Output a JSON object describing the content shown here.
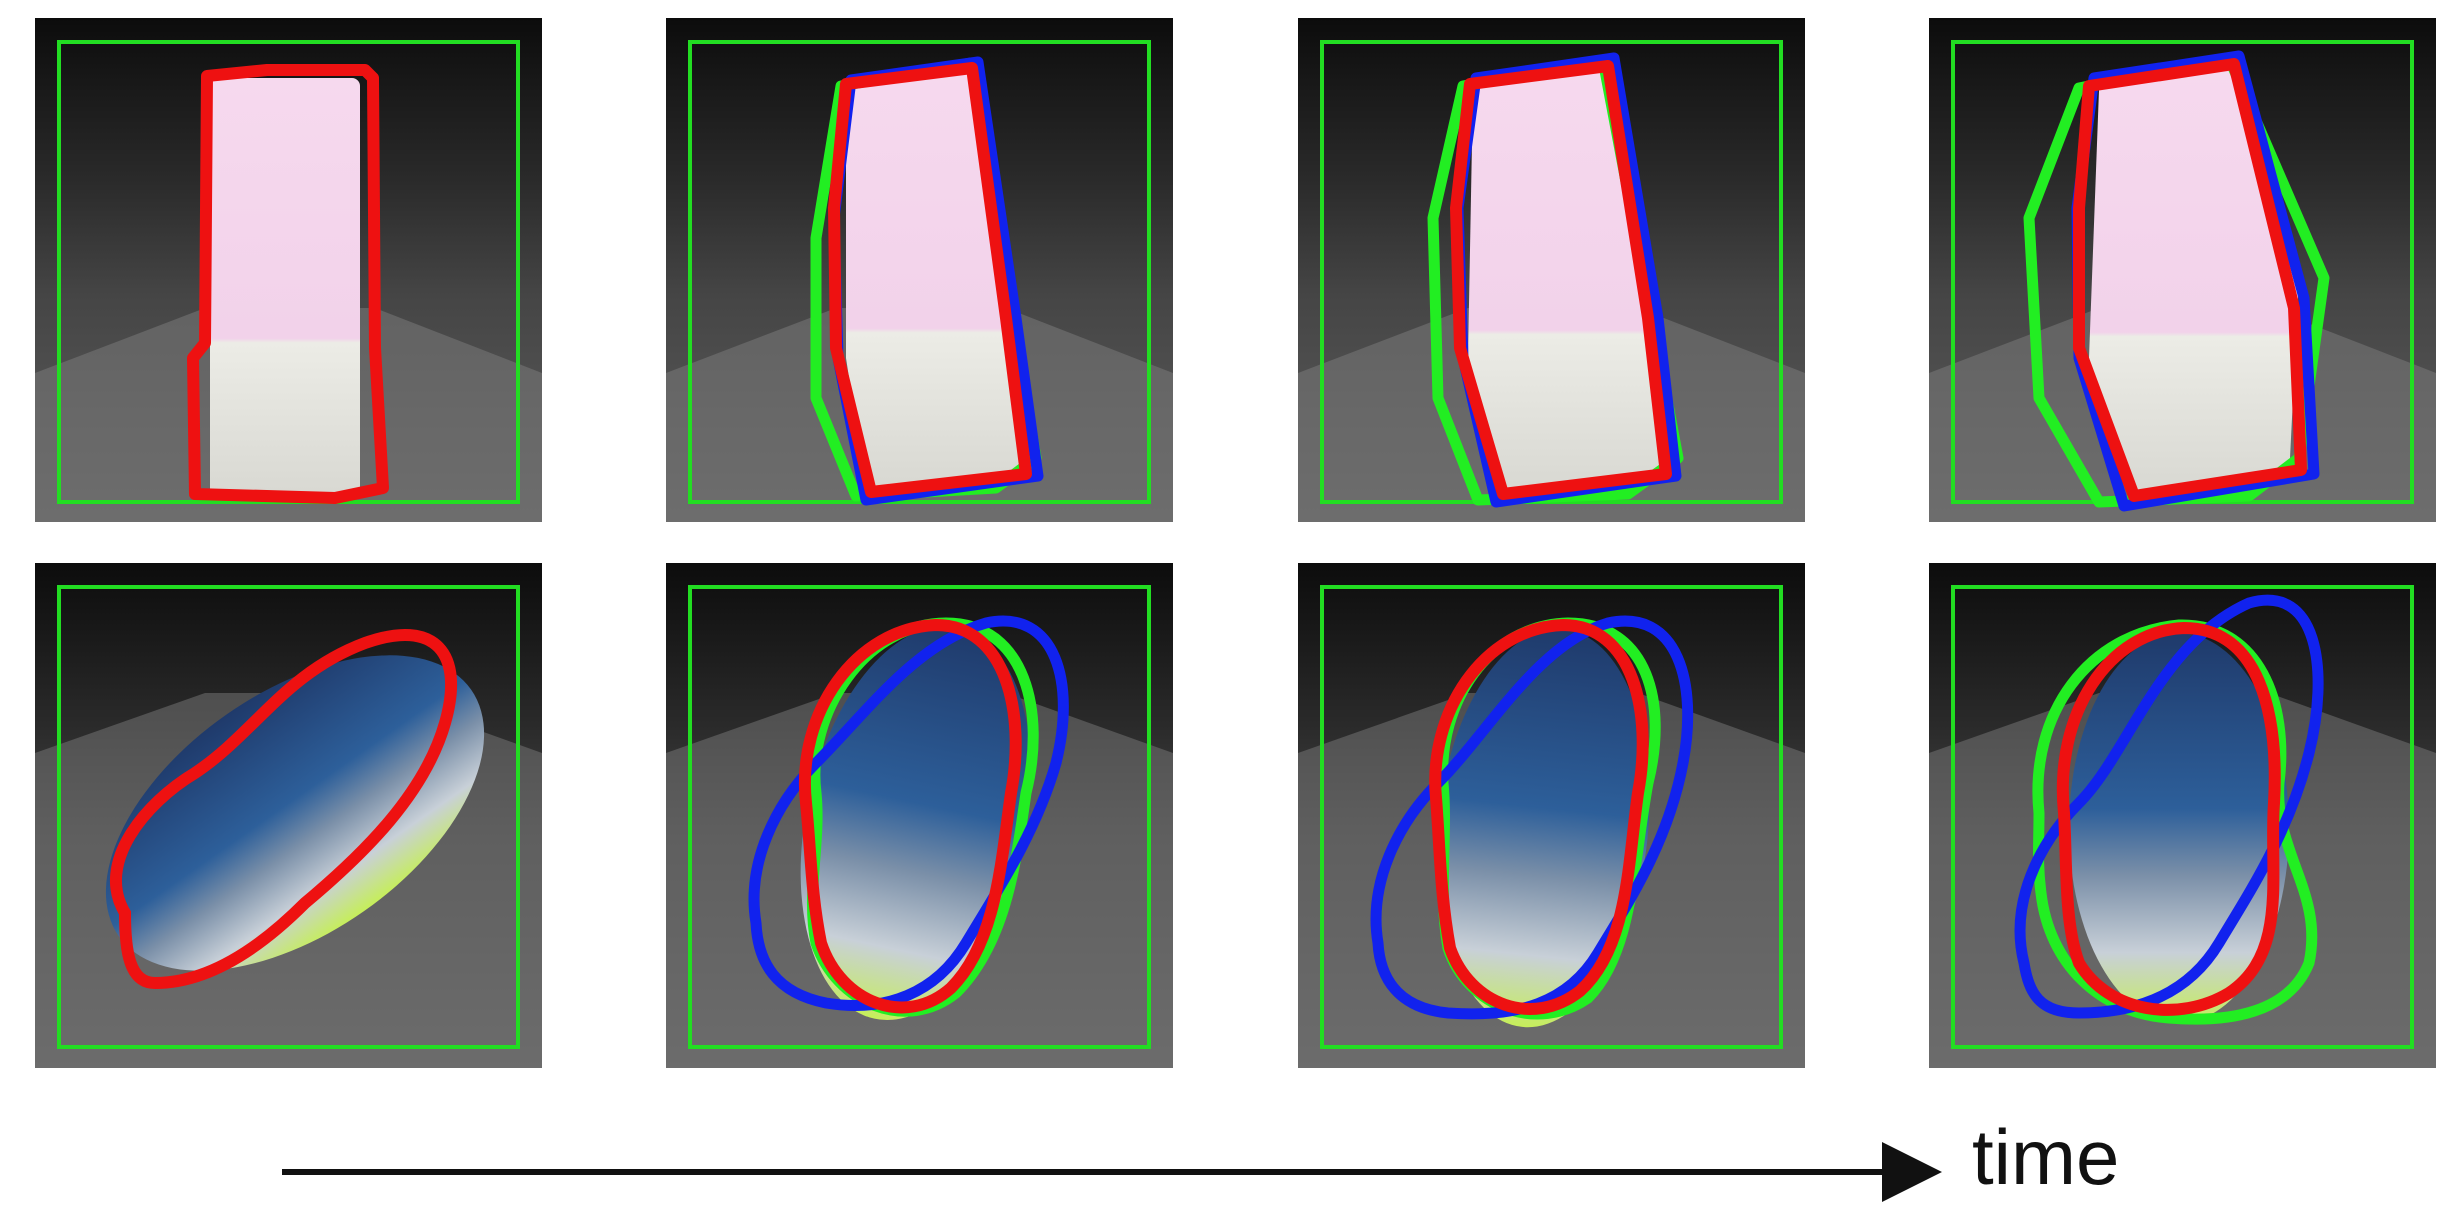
{
  "figure": {
    "axis_label": "time",
    "legend_colors": {
      "bounding_box": "#22dd22",
      "contour_a": "#ee1111",
      "contour_b": "#1122ee",
      "contour_c": "#22ee22"
    },
    "rows": [
      {
        "object": "pink-white-block",
        "frames": [
          {
            "index": 1
          },
          {
            "index": 2
          },
          {
            "index": 3
          },
          {
            "index": 4
          }
        ]
      },
      {
        "object": "sneaker",
        "frames": [
          {
            "index": 1
          },
          {
            "index": 2
          },
          {
            "index": 3
          },
          {
            "index": 4
          }
        ]
      }
    ]
  }
}
